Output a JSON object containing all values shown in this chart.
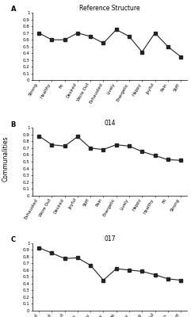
{
  "panel_A": {
    "title": "Reference Structure",
    "label": "A",
    "categories": [
      "Strong",
      "Healthy",
      "Fit",
      "Desired",
      "Wore Out",
      "Exhausted",
      "Lively",
      "Energetic",
      "Happy",
      "Joyful",
      "Pain",
      "Stiff"
    ],
    "values": [
      0.7,
      0.6,
      0.6,
      0.7,
      0.65,
      0.55,
      0.75,
      0.65,
      0.42,
      0.7,
      0.5,
      0.35
    ]
  },
  "panel_B": {
    "title": "014",
    "label": "B",
    "categories": [
      "Exhausted",
      "Wore Out",
      "Desired",
      "Joyful",
      "Stiff",
      "Pain",
      "Energetic",
      "Lively",
      "Happy",
      "Healthy",
      "Fit",
      "Strong"
    ],
    "values": [
      0.88,
      0.75,
      0.73,
      0.87,
      0.7,
      0.68,
      0.75,
      0.73,
      0.65,
      0.59,
      0.53,
      0.52
    ]
  },
  "panel_C": {
    "title": "017",
    "label": "C",
    "categories": [
      "Exhausted",
      "Desired",
      "Wore Out",
      "Energetic",
      "Lively",
      "Happy",
      "Fit",
      "Healthy",
      "Strong",
      "Joyful",
      "Pain",
      "Stiff"
    ],
    "values": [
      0.93,
      0.85,
      0.77,
      0.78,
      0.67,
      0.45,
      0.62,
      0.6,
      0.58,
      0.53,
      0.47,
      0.45
    ]
  },
  "ylabel": "Communalities",
  "ylim": [
    0,
    1.0
  ],
  "yticks": [
    0,
    0.1,
    0.2,
    0.3,
    0.4,
    0.5,
    0.6,
    0.7,
    0.8,
    0.9,
    1
  ],
  "ytick_labels": [
    "0",
    "0.1",
    "0.2",
    "0.3",
    "0.4",
    "0.5",
    "0.6",
    "0.7",
    "0.8",
    "0.9",
    "1"
  ],
  "line_color": "#222222",
  "marker": "s",
  "marker_size": 2.5,
  "line_width": 0.8,
  "bg_color": "#ffffff",
  "xtick_fontsize": 4.0,
  "ytick_fontsize": 4.0,
  "label_fontsize": 5.5,
  "title_fontsize": 5.5,
  "panel_label_fontsize": 6.0,
  "xtick_rotation": 60
}
